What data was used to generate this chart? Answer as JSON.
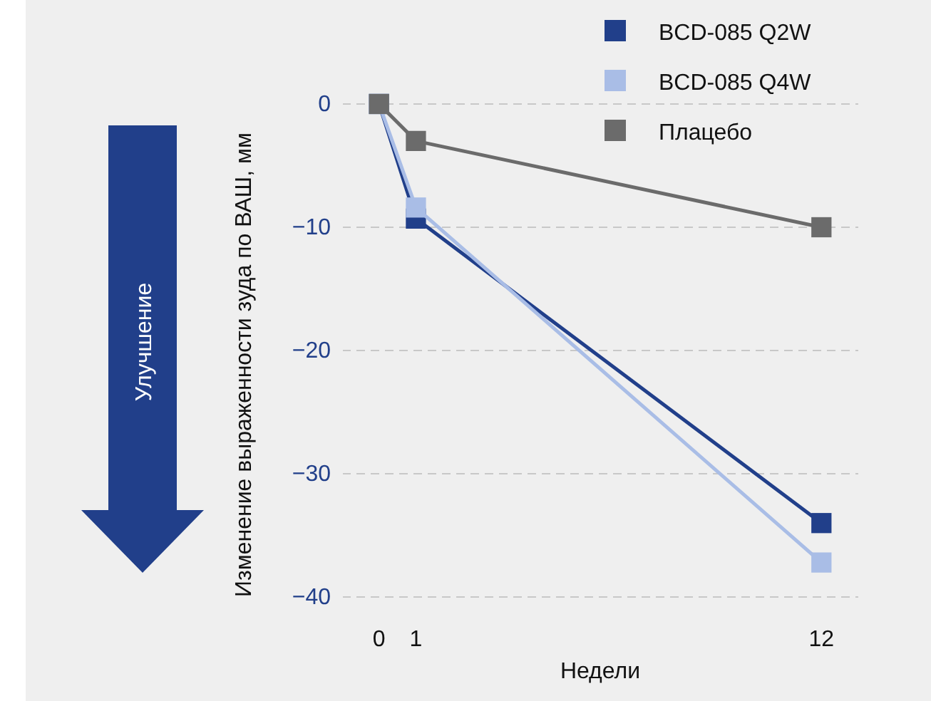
{
  "chart_data": {
    "type": "line",
    "x": [
      0,
      1,
      12
    ],
    "series": [
      {
        "name": "BCD-085 Q2W",
        "color": "#213f8a",
        "values": [
          0,
          -9.3,
          -34
        ]
      },
      {
        "name": "BCD-085 Q4W",
        "color": "#a9bde6",
        "values": [
          0,
          -8.4,
          -37.2
        ]
      },
      {
        "name": "Плацебо",
        "color": "#6b6b6b",
        "values": [
          0,
          -3,
          -10
        ]
      }
    ],
    "xlim": [
      -1,
      13
    ],
    "xticks": [
      0,
      1,
      12
    ],
    "ylim": [
      -41.5,
      1.5
    ],
    "yticks": [
      0,
      -10,
      -20,
      -30,
      -40
    ],
    "xlabel": "Недели",
    "ylabel": "Изменение выраженности зуда по ВАШ, мм",
    "annotations": [
      "Улучшение"
    ],
    "grid": "y",
    "legend": "top right",
    "marker": "square",
    "line_style": "solid"
  }
}
